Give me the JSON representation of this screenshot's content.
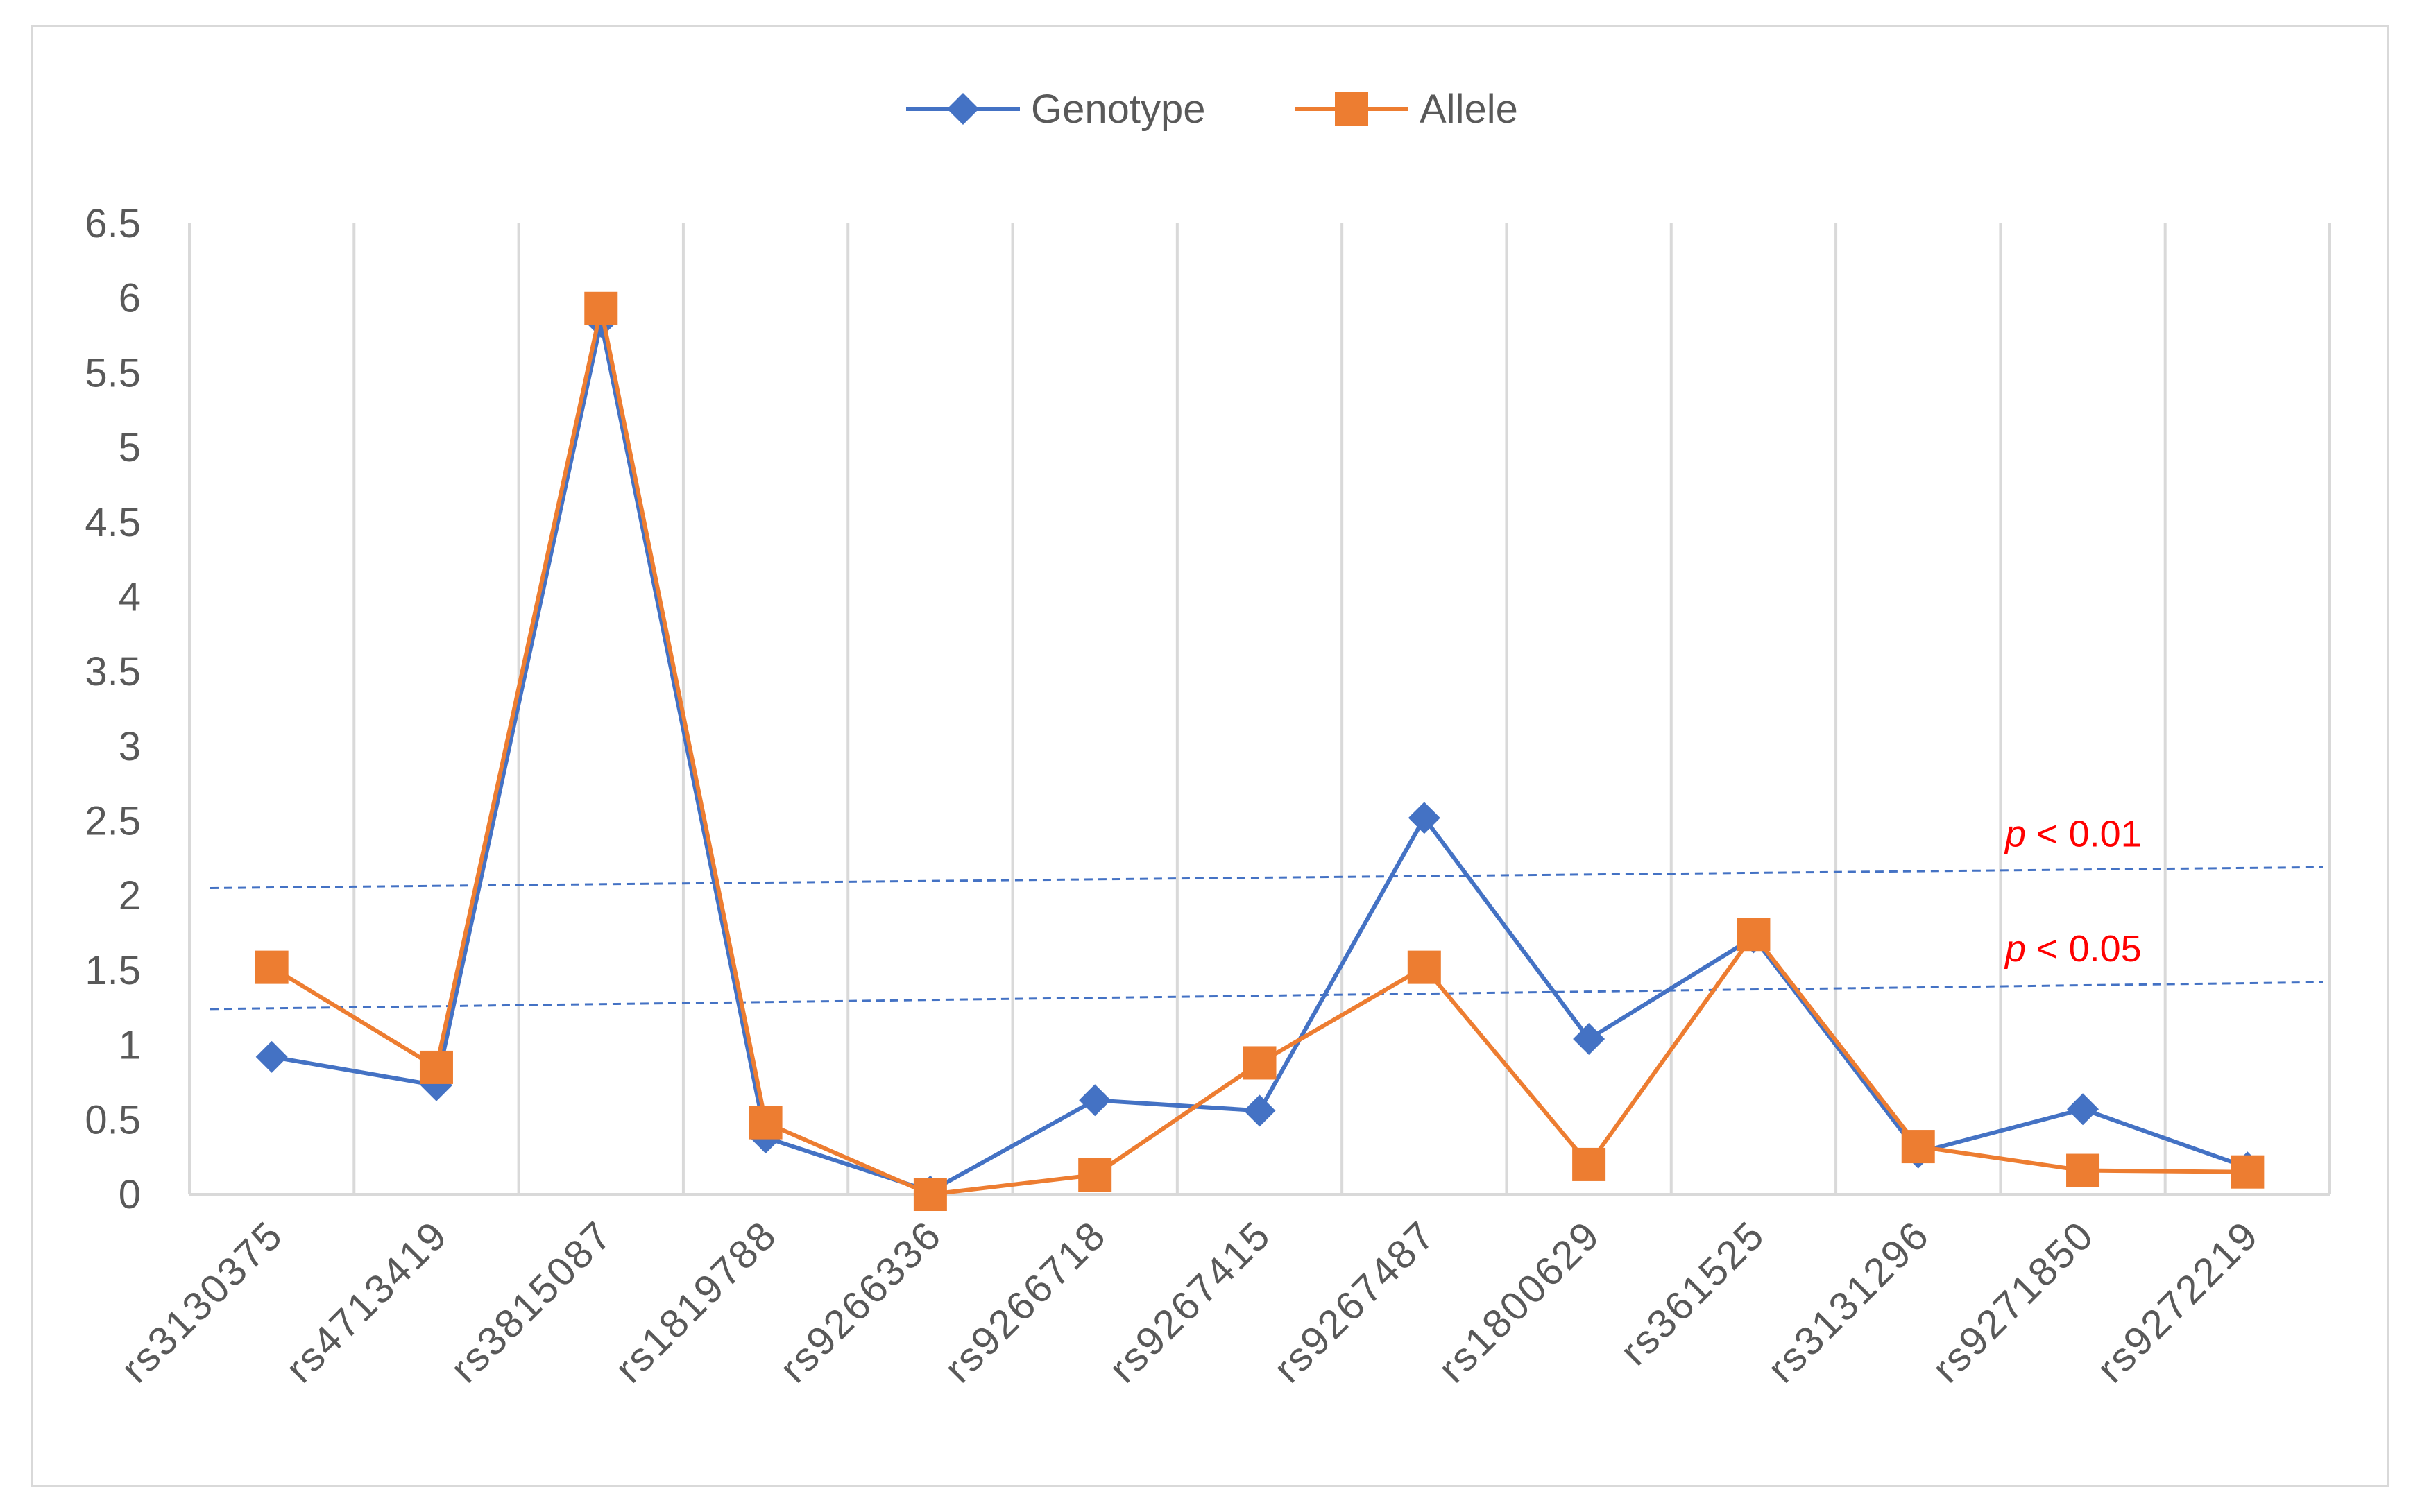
{
  "chart_data": {
    "type": "line",
    "categories": [
      "rs3130375",
      "rs4713419",
      "rs3815087",
      "rs1819788",
      "rs9266336",
      "rs9266718",
      "rs9267415",
      "rs9267487",
      "rs1800629",
      "rs361525",
      "rs3131296",
      "rs9271850",
      "rs9272219"
    ],
    "series": [
      {
        "name": "Genotype",
        "values": [
          0.92,
          0.73,
          5.84,
          0.38,
          0.02,
          0.63,
          0.56,
          2.52,
          1.04,
          1.72,
          0.28,
          0.57,
          0.18
        ],
        "color": "#4472c4",
        "marker": "diamond"
      },
      {
        "name": "Allele",
        "values": [
          1.52,
          0.85,
          5.93,
          0.48,
          0.0,
          0.13,
          0.88,
          1.52,
          0.2,
          1.74,
          0.32,
          0.16,
          0.15
        ],
        "color": "#ed7d31",
        "marker": "square"
      }
    ],
    "ylim": [
      0,
      6.5
    ],
    "yticks": [
      "0",
      "0.5",
      "1",
      "1.5",
      "2",
      "2.5",
      "3",
      "3.5",
      "4",
      "4.5",
      "5",
      "5.5",
      "6",
      "6.5"
    ],
    "grid": "vertical",
    "legend_position": "top",
    "reference_lines": [
      {
        "label_italic": "p",
        "label_rest": " < 0.01",
        "y_start": 2.05,
        "y_end": 2.19,
        "color": "#4472c4"
      },
      {
        "label_italic": "p",
        "label_rest": " < 0.05",
        "y_start": 1.24,
        "y_end": 1.42,
        "color": "#4472c4"
      }
    ],
    "annotation_color": "#ff0000"
  }
}
